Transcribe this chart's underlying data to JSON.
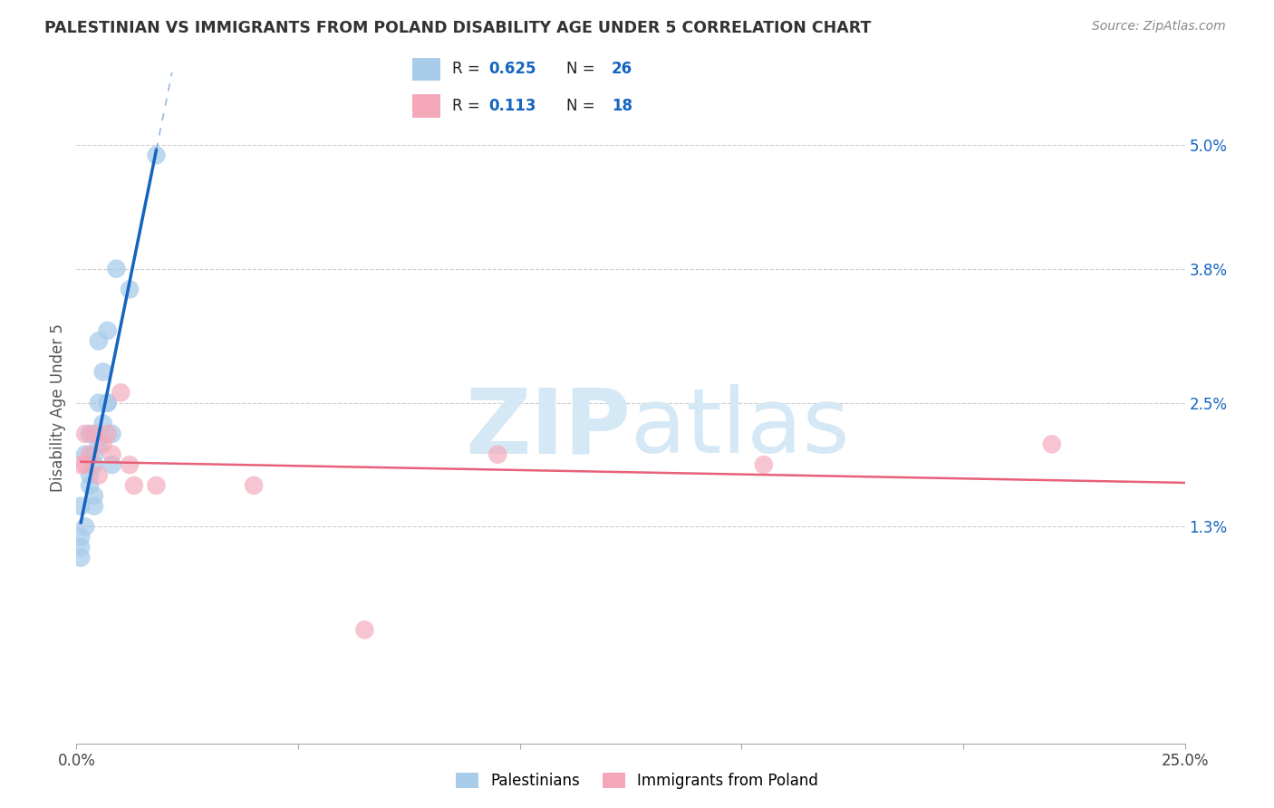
{
  "title": "PALESTINIAN VS IMMIGRANTS FROM POLAND DISABILITY AGE UNDER 5 CORRELATION CHART",
  "source": "Source: ZipAtlas.com",
  "ylabel": "Disability Age Under 5",
  "yticks_labels": [
    "1.3%",
    "2.5%",
    "3.8%",
    "5.0%"
  ],
  "yticks_values": [
    0.013,
    0.025,
    0.038,
    0.05
  ],
  "xlim": [
    0.0,
    0.25
  ],
  "ylim": [
    -0.008,
    0.057
  ],
  "legend_r1_black": "R = ",
  "legend_r1_blue": "0.625",
  "legend_n1_black": "  N = ",
  "legend_n1_blue": "26",
  "legend_r2_black": "R =  ",
  "legend_r2_blue": "0.113",
  "legend_n2_black": "  N = ",
  "legend_n2_blue": "18",
  "color_blue": "#A8CCEA",
  "color_pink": "#F4A7B9",
  "trendline_blue": "#1565C0",
  "trendline_pink": "#E8607A",
  "watermark_zip": "ZIP",
  "watermark_atlas": "atlas",
  "watermark_color": "#D5E8F5",
  "palestinians_x": [
    0.001,
    0.001,
    0.001,
    0.001,
    0.002,
    0.002,
    0.003,
    0.003,
    0.003,
    0.004,
    0.004,
    0.004,
    0.004,
    0.005,
    0.005,
    0.005,
    0.006,
    0.006,
    0.007,
    0.007,
    0.007,
    0.008,
    0.008,
    0.009,
    0.012,
    0.018
  ],
  "palestinians_y": [
    0.01,
    0.011,
    0.012,
    0.015,
    0.013,
    0.02,
    0.017,
    0.018,
    0.022,
    0.015,
    0.016,
    0.019,
    0.02,
    0.021,
    0.025,
    0.031,
    0.023,
    0.028,
    0.025,
    0.025,
    0.032,
    0.019,
    0.022,
    0.038,
    0.036,
    0.049
  ],
  "poland_x": [
    0.001,
    0.002,
    0.002,
    0.003,
    0.004,
    0.005,
    0.006,
    0.007,
    0.008,
    0.01,
    0.012,
    0.013,
    0.018,
    0.04,
    0.065,
    0.095,
    0.155,
    0.22
  ],
  "poland_y": [
    0.019,
    0.022,
    0.019,
    0.02,
    0.022,
    0.018,
    0.021,
    0.022,
    0.02,
    0.026,
    0.019,
    0.017,
    0.017,
    0.017,
    0.003,
    0.02,
    0.019,
    0.021
  ],
  "background_color": "#FFFFFF",
  "grid_color": "#CCCCCC"
}
